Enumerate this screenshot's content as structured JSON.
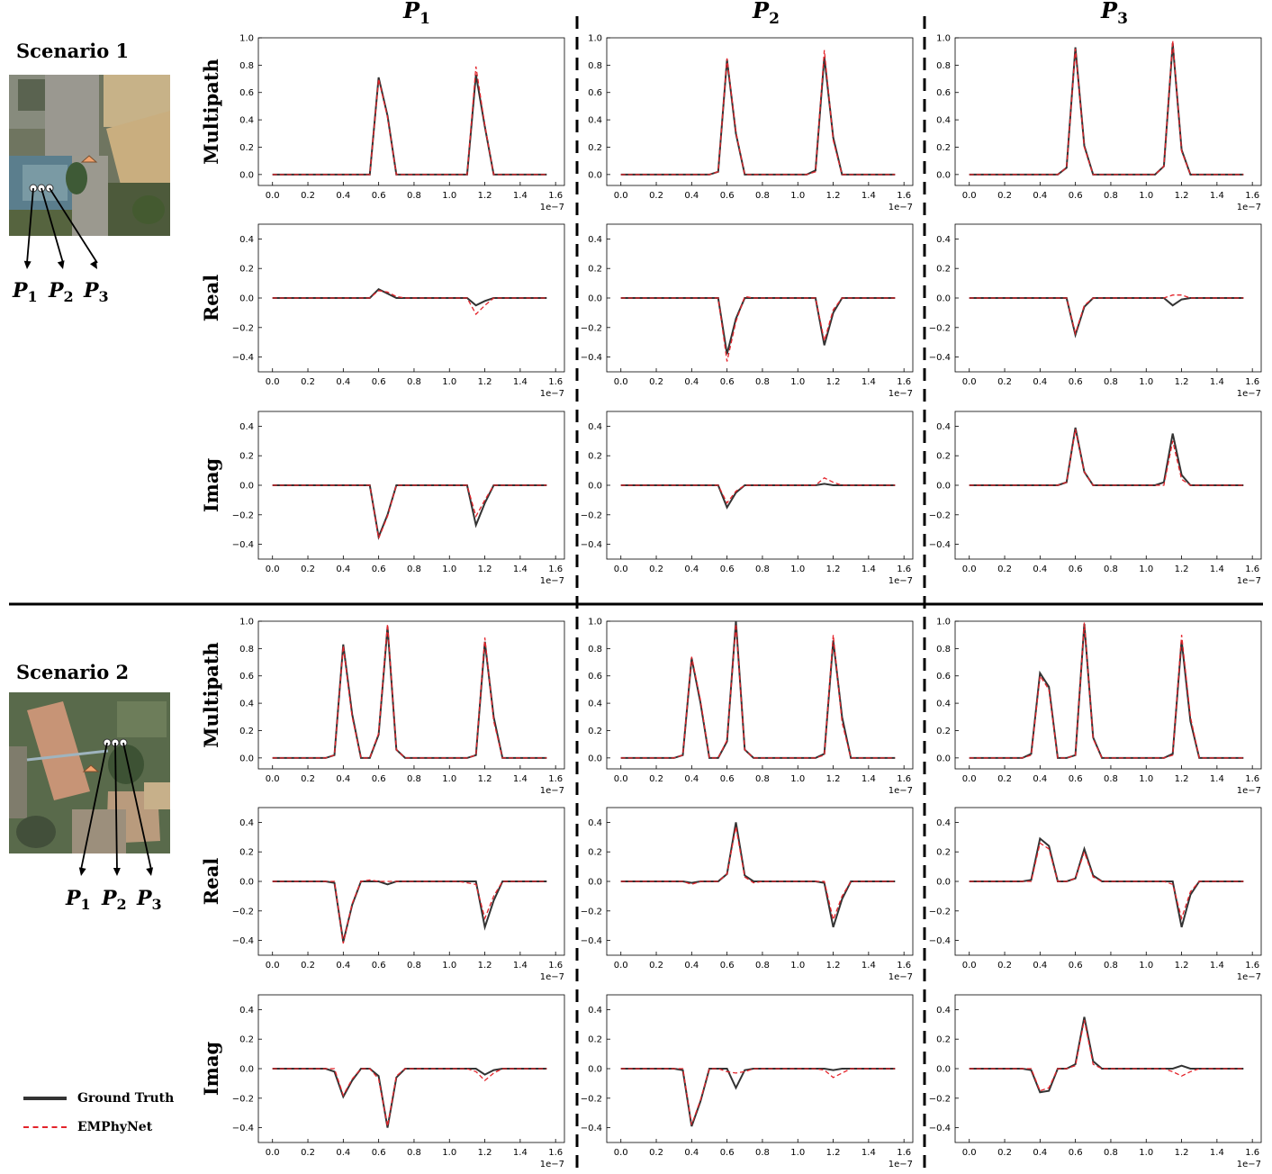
{
  "column_headers": [
    {
      "base": "P",
      "sub": "1"
    },
    {
      "base": "P",
      "sub": "2"
    },
    {
      "base": "P",
      "sub": "3"
    }
  ],
  "row_labels": [
    "Multipath",
    "Real",
    "Imag"
  ],
  "scenarios": [
    {
      "title": "Scenario 1",
      "point_labels": [
        "P",
        "P",
        "P"
      ],
      "point_subs": [
        "1",
        "2",
        "3"
      ]
    },
    {
      "title": "Scenario 2",
      "point_labels": [
        "P",
        "P",
        "P"
      ],
      "point_subs": [
        "1",
        "2",
        "3"
      ]
    }
  ],
  "legend": [
    {
      "label": "Ground Truth",
      "color": "#333333",
      "style": "solid"
    },
    {
      "label": "EMPhyNet",
      "color": "#e3242b",
      "style": "dashed"
    }
  ],
  "axis": {
    "x_ticks": [
      "0.0",
      "0.2",
      "0.4",
      "0.6",
      "0.8",
      "1.0",
      "1.2",
      "1.4",
      "1.6"
    ],
    "x_exponent": "1e−7",
    "multipath_y_ticks": [
      "0.0",
      "0.2",
      "0.4",
      "0.6",
      "0.8",
      "1.0"
    ],
    "complex_y_ticks": [
      "−0.4",
      "−0.2",
      "0.0",
      "0.2",
      "0.4"
    ]
  },
  "chart_data": {
    "type": "line",
    "x_exponent": "1e-7",
    "xlim": [
      -0.08,
      1.65
    ],
    "ylim_multipath": [
      -0.08,
      1.0
    ],
    "ylim_complex": [
      -0.5,
      0.5
    ],
    "series_names": [
      "Ground Truth",
      "EMPhyNet"
    ],
    "x_common": [
      0.0,
      0.05,
      0.1,
      0.15,
      0.2,
      0.25,
      0.3,
      0.35,
      0.4,
      0.45,
      0.5,
      0.55,
      0.6,
      0.65,
      0.7,
      0.75,
      0.8,
      0.85,
      0.9,
      0.95,
      1.0,
      1.05,
      1.1,
      1.15,
      1.2,
      1.25,
      1.3,
      1.35,
      1.4,
      1.45,
      1.5,
      1.55
    ],
    "panels": [
      {
        "scenario": 1,
        "point": "P1",
        "row": "Multipath",
        "gt_peaks": [
          [
            0.6,
            0.71
          ],
          [
            0.65,
            0.43
          ],
          [
            1.15,
            0.73
          ],
          [
            1.2,
            0.35
          ]
        ],
        "pred_peaks": [
          [
            0.6,
            0.7
          ],
          [
            0.65,
            0.42
          ],
          [
            1.15,
            0.79
          ],
          [
            1.2,
            0.36
          ]
        ]
      },
      {
        "scenario": 1,
        "point": "P1",
        "row": "Real",
        "gt_peaks": [
          [
            0.6,
            0.06
          ],
          [
            0.65,
            0.03
          ],
          [
            1.15,
            -0.05
          ],
          [
            1.2,
            -0.02
          ]
        ],
        "pred_peaks": [
          [
            0.6,
            0.05
          ],
          [
            0.65,
            0.04
          ],
          [
            0.7,
            0.01
          ],
          [
            1.15,
            -0.11
          ],
          [
            1.2,
            -0.05
          ]
        ]
      },
      {
        "scenario": 1,
        "point": "P1",
        "row": "Imag",
        "gt_peaks": [
          [
            0.6,
            -0.35
          ],
          [
            0.65,
            -0.2
          ],
          [
            1.15,
            -0.27
          ],
          [
            1.2,
            -0.12
          ]
        ],
        "pred_peaks": [
          [
            0.6,
            -0.36
          ],
          [
            0.65,
            -0.21
          ],
          [
            1.15,
            -0.21
          ],
          [
            1.2,
            -0.1
          ]
        ]
      },
      {
        "scenario": 1,
        "point": "P2",
        "row": "Multipath",
        "gt_peaks": [
          [
            0.55,
            0.02
          ],
          [
            0.6,
            0.84
          ],
          [
            0.65,
            0.3
          ],
          [
            1.1,
            0.03
          ],
          [
            1.15,
            0.86
          ],
          [
            1.2,
            0.27
          ]
        ],
        "pred_peaks": [
          [
            0.55,
            0.02
          ],
          [
            0.6,
            0.85
          ],
          [
            0.65,
            0.31
          ],
          [
            1.1,
            0.02
          ],
          [
            1.15,
            0.91
          ],
          [
            1.2,
            0.25
          ]
        ]
      },
      {
        "scenario": 1,
        "point": "P2",
        "row": "Real",
        "gt_peaks": [
          [
            0.6,
            -0.38
          ],
          [
            0.65,
            -0.14
          ],
          [
            1.15,
            -0.32
          ],
          [
            1.2,
            -0.1
          ]
        ],
        "pred_peaks": [
          [
            0.6,
            -0.43
          ],
          [
            0.65,
            -0.16
          ],
          [
            0.7,
            0.01
          ],
          [
            1.15,
            -0.29
          ],
          [
            1.2,
            -0.08
          ]
        ]
      },
      {
        "scenario": 1,
        "point": "P2",
        "row": "Imag",
        "gt_peaks": [
          [
            0.6,
            -0.15
          ],
          [
            0.65,
            -0.05
          ],
          [
            1.15,
            0.01
          ]
        ],
        "pred_peaks": [
          [
            0.6,
            -0.12
          ],
          [
            0.65,
            -0.04
          ],
          [
            1.15,
            0.05
          ],
          [
            1.2,
            0.02
          ]
        ]
      },
      {
        "scenario": 1,
        "point": "P3",
        "row": "Multipath",
        "gt_peaks": [
          [
            0.55,
            0.05
          ],
          [
            0.6,
            0.93
          ],
          [
            0.65,
            0.21
          ],
          [
            1.1,
            0.06
          ],
          [
            1.15,
            0.96
          ],
          [
            1.2,
            0.18
          ]
        ],
        "pred_peaks": [
          [
            0.55,
            0.05
          ],
          [
            0.6,
            0.92
          ],
          [
            0.65,
            0.2
          ],
          [
            1.1,
            0.06
          ],
          [
            1.15,
            0.98
          ],
          [
            1.2,
            0.17
          ]
        ]
      },
      {
        "scenario": 1,
        "point": "P3",
        "row": "Real",
        "gt_peaks": [
          [
            0.6,
            -0.25
          ],
          [
            0.65,
            -0.06
          ],
          [
            1.15,
            -0.05
          ],
          [
            1.2,
            -0.01
          ]
        ],
        "pred_peaks": [
          [
            0.6,
            -0.24
          ],
          [
            0.65,
            -0.05
          ],
          [
            1.15,
            0.02
          ],
          [
            1.2,
            0.02
          ]
        ]
      },
      {
        "scenario": 1,
        "point": "P3",
        "row": "Imag",
        "gt_peaks": [
          [
            0.55,
            0.02
          ],
          [
            0.6,
            0.39
          ],
          [
            0.65,
            0.09
          ],
          [
            1.1,
            0.02
          ],
          [
            1.15,
            0.35
          ],
          [
            1.2,
            0.07
          ]
        ],
        "pred_peaks": [
          [
            0.55,
            0.02
          ],
          [
            0.6,
            0.38
          ],
          [
            0.65,
            0.09
          ],
          [
            1.15,
            0.3
          ],
          [
            1.2,
            0.04
          ]
        ]
      },
      {
        "scenario": 2,
        "point": "P1",
        "row": "Multipath",
        "gt_peaks": [
          [
            0.35,
            0.02
          ],
          [
            0.4,
            0.83
          ],
          [
            0.45,
            0.32
          ],
          [
            0.6,
            0.17
          ],
          [
            0.65,
            0.96
          ],
          [
            0.7,
            0.06
          ],
          [
            1.15,
            0.02
          ],
          [
            1.2,
            0.85
          ],
          [
            1.25,
            0.3
          ]
        ],
        "pred_peaks": [
          [
            0.35,
            0.02
          ],
          [
            0.4,
            0.82
          ],
          [
            0.45,
            0.3
          ],
          [
            0.6,
            0.18
          ],
          [
            0.65,
            0.98
          ],
          [
            0.7,
            0.06
          ],
          [
            1.15,
            0.02
          ],
          [
            1.2,
            0.88
          ],
          [
            1.25,
            0.27
          ]
        ]
      },
      {
        "scenario": 2,
        "point": "P1",
        "row": "Real",
        "gt_peaks": [
          [
            0.35,
            -0.01
          ],
          [
            0.4,
            -0.41
          ],
          [
            0.45,
            -0.16
          ],
          [
            0.6,
            0.0
          ],
          [
            0.65,
            -0.02
          ],
          [
            1.2,
            -0.31
          ],
          [
            1.25,
            -0.13
          ]
        ],
        "pred_peaks": [
          [
            0.4,
            -0.42
          ],
          [
            0.45,
            -0.15
          ],
          [
            0.55,
            0.01
          ],
          [
            1.1,
            -0.01
          ],
          [
            1.15,
            -0.02
          ],
          [
            1.2,
            -0.25
          ],
          [
            1.25,
            -0.1
          ]
        ]
      },
      {
        "scenario": 2,
        "point": "P1",
        "row": "Imag",
        "gt_peaks": [
          [
            0.35,
            -0.02
          ],
          [
            0.4,
            -0.19
          ],
          [
            0.45,
            -0.08
          ],
          [
            0.6,
            -0.05
          ],
          [
            0.65,
            -0.4
          ],
          [
            0.7,
            -0.06
          ],
          [
            1.15,
            0.0
          ],
          [
            1.2,
            -0.04
          ],
          [
            1.25,
            -0.01
          ]
        ],
        "pred_peaks": [
          [
            0.4,
            -0.18
          ],
          [
            0.45,
            -0.07
          ],
          [
            0.6,
            -0.07
          ],
          [
            0.65,
            -0.39
          ],
          [
            0.7,
            -0.05
          ],
          [
            1.15,
            -0.02
          ],
          [
            1.2,
            -0.08
          ],
          [
            1.25,
            -0.03
          ]
        ]
      },
      {
        "scenario": 2,
        "point": "P2",
        "row": "Multipath",
        "gt_peaks": [
          [
            0.35,
            0.02
          ],
          [
            0.4,
            0.73
          ],
          [
            0.45,
            0.4
          ],
          [
            0.6,
            0.12
          ],
          [
            0.65,
            1.0
          ],
          [
            0.7,
            0.06
          ],
          [
            1.15,
            0.03
          ],
          [
            1.2,
            0.86
          ],
          [
            1.25,
            0.3
          ]
        ],
        "pred_peaks": [
          [
            0.35,
            0.02
          ],
          [
            0.4,
            0.74
          ],
          [
            0.45,
            0.42
          ],
          [
            0.6,
            0.13
          ],
          [
            0.65,
            0.98
          ],
          [
            0.7,
            0.06
          ],
          [
            1.15,
            0.02
          ],
          [
            1.2,
            0.9
          ],
          [
            1.25,
            0.26
          ]
        ]
      },
      {
        "scenario": 2,
        "point": "P2",
        "row": "Real",
        "gt_peaks": [
          [
            0.4,
            -0.01
          ],
          [
            0.6,
            0.05
          ],
          [
            0.65,
            0.4
          ],
          [
            0.7,
            0.04
          ],
          [
            1.15,
            -0.01
          ],
          [
            1.2,
            -0.31
          ],
          [
            1.25,
            -0.12
          ]
        ],
        "pred_peaks": [
          [
            0.4,
            -0.02
          ],
          [
            0.6,
            0.05
          ],
          [
            0.65,
            0.37
          ],
          [
            0.7,
            0.03
          ],
          [
            0.75,
            -0.01
          ],
          [
            1.2,
            -0.26
          ],
          [
            1.25,
            -0.1
          ]
        ]
      },
      {
        "scenario": 2,
        "point": "P2",
        "row": "Imag",
        "gt_peaks": [
          [
            0.35,
            -0.01
          ],
          [
            0.4,
            -0.39
          ],
          [
            0.45,
            -0.22
          ],
          [
            0.6,
            0.0
          ],
          [
            0.65,
            -0.13
          ],
          [
            0.7,
            -0.01
          ],
          [
            1.2,
            -0.01
          ]
        ],
        "pred_peaks": [
          [
            0.4,
            -0.38
          ],
          [
            0.45,
            -0.21
          ],
          [
            0.6,
            -0.02
          ],
          [
            0.65,
            -0.03
          ],
          [
            0.7,
            -0.02
          ],
          [
            1.15,
            -0.01
          ],
          [
            1.2,
            -0.06
          ],
          [
            1.25,
            -0.03
          ]
        ]
      },
      {
        "scenario": 2,
        "point": "P3",
        "row": "Multipath",
        "gt_peaks": [
          [
            0.35,
            0.03
          ],
          [
            0.4,
            0.62
          ],
          [
            0.45,
            0.52
          ],
          [
            0.6,
            0.02
          ],
          [
            0.65,
            0.98
          ],
          [
            0.7,
            0.15
          ],
          [
            1.15,
            0.03
          ],
          [
            1.2,
            0.86
          ],
          [
            1.25,
            0.27
          ]
        ],
        "pred_peaks": [
          [
            0.35,
            0.02
          ],
          [
            0.4,
            0.6
          ],
          [
            0.45,
            0.5
          ],
          [
            0.6,
            0.02
          ],
          [
            0.65,
            0.99
          ],
          [
            0.7,
            0.14
          ],
          [
            1.15,
            0.02
          ],
          [
            1.2,
            0.9
          ],
          [
            1.25,
            0.3
          ]
        ]
      },
      {
        "scenario": 2,
        "point": "P3",
        "row": "Real",
        "gt_peaks": [
          [
            0.35,
            0.01
          ],
          [
            0.4,
            0.29
          ],
          [
            0.45,
            0.24
          ],
          [
            0.55,
            0.0
          ],
          [
            0.6,
            0.02
          ],
          [
            0.65,
            0.22
          ],
          [
            0.7,
            0.04
          ],
          [
            1.15,
            0.0
          ],
          [
            1.2,
            -0.31
          ],
          [
            1.25,
            -0.09
          ]
        ],
        "pred_peaks": [
          [
            0.4,
            0.26
          ],
          [
            0.45,
            0.22
          ],
          [
            0.6,
            0.02
          ],
          [
            0.65,
            0.2
          ],
          [
            0.7,
            0.03
          ],
          [
            1.15,
            -0.02
          ],
          [
            1.2,
            -0.25
          ],
          [
            1.25,
            -0.07
          ]
        ]
      },
      {
        "scenario": 2,
        "point": "P3",
        "row": "Imag",
        "gt_peaks": [
          [
            0.35,
            -0.01
          ],
          [
            0.4,
            -0.16
          ],
          [
            0.45,
            -0.15
          ],
          [
            0.5,
            0.0
          ],
          [
            0.55,
            0.0
          ],
          [
            0.6,
            0.03
          ],
          [
            0.65,
            0.35
          ],
          [
            0.7,
            0.05
          ],
          [
            1.15,
            0.0
          ],
          [
            1.2,
            0.02
          ],
          [
            1.25,
            0.0
          ]
        ],
        "pred_peaks": [
          [
            0.4,
            -0.15
          ],
          [
            0.45,
            -0.13
          ],
          [
            0.6,
            0.02
          ],
          [
            0.65,
            0.33
          ],
          [
            0.7,
            0.03
          ],
          [
            1.15,
            -0.02
          ],
          [
            1.2,
            -0.05
          ],
          [
            1.25,
            -0.02
          ]
        ]
      }
    ]
  }
}
